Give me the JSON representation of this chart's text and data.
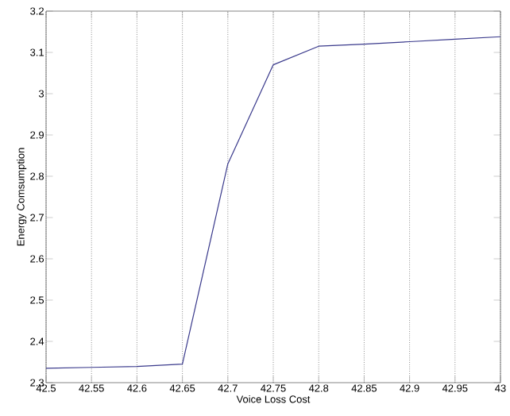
{
  "chart_data": {
    "type": "line",
    "xlabel": "Voice Loss Cost",
    "ylabel": "Energy Comsumption",
    "x": [
      42.5,
      42.55,
      42.6,
      42.65,
      42.7,
      42.75,
      42.8,
      42.85,
      42.9,
      42.95,
      43
    ],
    "series": [
      {
        "color": "#3a3a8c",
        "values": [
          2.335,
          2.337,
          2.339,
          2.345,
          2.83,
          3.07,
          3.115,
          3.12,
          3.126,
          3.132,
          3.138
        ]
      }
    ],
    "xlim": [
      42.5,
      43
    ],
    "ylim": [
      2.3,
      3.2
    ],
    "xticks": [
      42.5,
      42.55,
      42.6,
      42.65,
      42.7,
      42.75,
      42.8,
      42.85,
      42.9,
      42.95,
      43
    ],
    "yticks": [
      2.3,
      2.4,
      2.5,
      2.6,
      2.7,
      2.8,
      2.9,
      3,
      3.1,
      3.2
    ],
    "grid": "x",
    "line_style": "solid",
    "marker": "none"
  }
}
